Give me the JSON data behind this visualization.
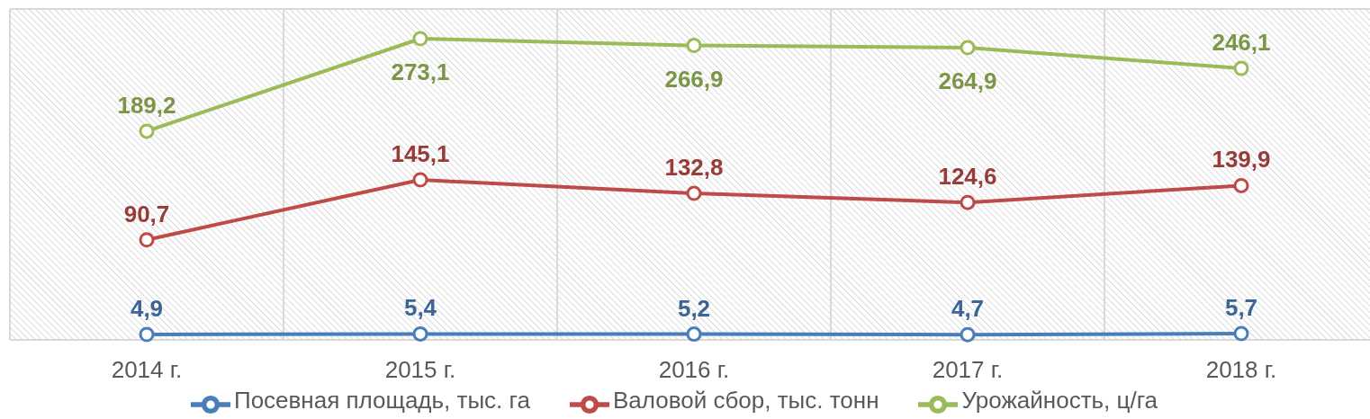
{
  "chart_data": {
    "type": "line",
    "categories": [
      "2014 г.",
      "2015 г.",
      "2016 г.",
      "2017 г.",
      "2018 г."
    ],
    "series": [
      {
        "name": "Посевная площадь, тыс. га",
        "color": "#4a7ebb",
        "values": [
          4.9,
          5.4,
          5.2,
          4.7,
          5.7
        ],
        "value_labels": [
          "4,9",
          "5,4",
          "5,2",
          "4,7",
          "5,7"
        ]
      },
      {
        "name": "Валовой сбор, тыс. тонн",
        "color": "#be4b48",
        "values": [
          90.7,
          145.1,
          132.8,
          124.6,
          139.9
        ],
        "value_labels": [
          "90,7",
          "145,1",
          "132,8",
          "124,6",
          "139,9"
        ]
      },
      {
        "name": "Урожайность, ц/га",
        "color": "#9bbb59",
        "values": [
          189.2,
          273.1,
          266.9,
          264.9,
          246.1
        ],
        "value_labels": [
          "189,2",
          "273,1",
          "266,9",
          "264,9",
          "246,1"
        ]
      }
    ],
    "tick_labels": "x",
    "grid": true,
    "legend": "bottom",
    "marker": "circle",
    "line_style": "solid"
  }
}
